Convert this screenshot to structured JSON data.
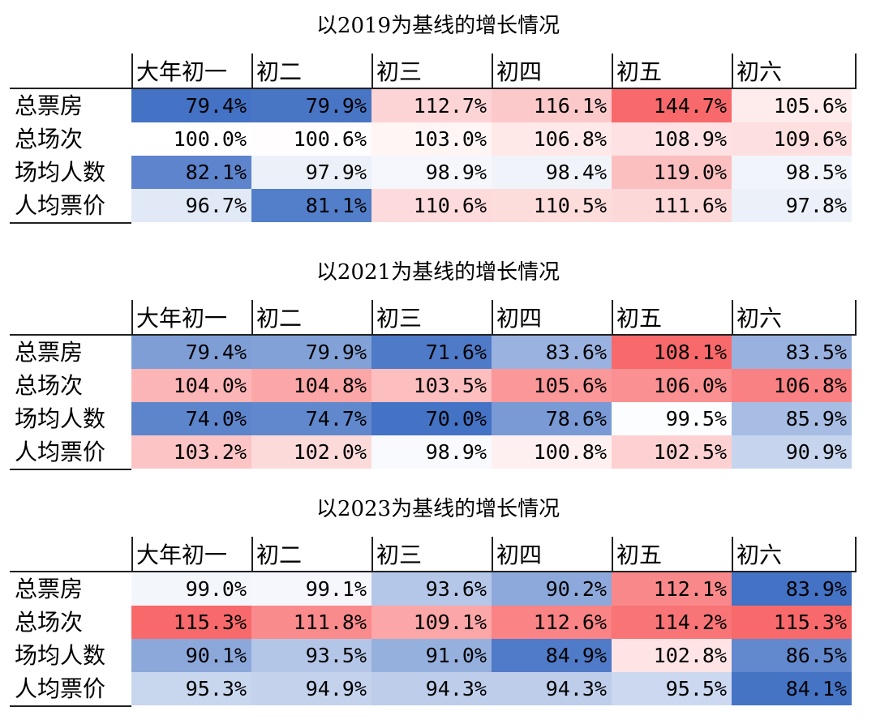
{
  "chart_data": [
    {
      "type": "heatmap",
      "title": "以2019为基线的增长情况",
      "columns": [
        "大年初一",
        "初二",
        "初三",
        "初四",
        "初五",
        "初六"
      ],
      "rows": [
        "总票房",
        "总场次",
        "场均人数",
        "人均票价"
      ],
      "display": [
        [
          "79.4%",
          "79.9%",
          "112.7%",
          "116.1%",
          "144.7%",
          "105.6%"
        ],
        [
          "100.0%",
          "100.6%",
          "103.0%",
          "106.8%",
          "108.9%",
          "109.6%"
        ],
        [
          "82.1%",
          "97.9%",
          "98.9%",
          "98.4%",
          "119.0%",
          "98.5%"
        ],
        [
          "96.7%",
          "81.1%",
          "110.6%",
          "110.5%",
          "111.6%",
          "97.8%"
        ]
      ],
      "values": [
        [
          79.4,
          79.9,
          112.7,
          116.1,
          144.7,
          105.6
        ],
        [
          100.0,
          100.6,
          103.0,
          106.8,
          108.9,
          109.6
        ],
        [
          82.1,
          97.9,
          98.9,
          98.4,
          119.0,
          98.5
        ],
        [
          96.7,
          81.1,
          110.6,
          110.5,
          111.6,
          97.8
        ]
      ]
    },
    {
      "type": "heatmap",
      "title": "以2021为基线的增长情况",
      "columns": [
        "大年初一",
        "初二",
        "初三",
        "初四",
        "初五",
        "初六"
      ],
      "rows": [
        "总票房",
        "总场次",
        "场均人数",
        "人均票价"
      ],
      "display": [
        [
          "79.4%",
          "79.9%",
          "71.6%",
          "83.6%",
          "108.1%",
          "83.5%"
        ],
        [
          "104.0%",
          "104.8%",
          "103.5%",
          "105.6%",
          "106.0%",
          "106.8%"
        ],
        [
          "74.0%",
          "74.7%",
          "70.0%",
          "78.6%",
          "99.5%",
          "85.9%"
        ],
        [
          "103.2%",
          "102.0%",
          "98.9%",
          "100.8%",
          "102.5%",
          "90.9%"
        ]
      ],
      "values": [
        [
          79.4,
          79.9,
          71.6,
          83.6,
          108.1,
          83.5
        ],
        [
          104.0,
          104.8,
          103.5,
          105.6,
          106.0,
          106.8
        ],
        [
          74.0,
          74.7,
          70.0,
          78.6,
          99.5,
          85.9
        ],
        [
          103.2,
          102.0,
          98.9,
          100.8,
          102.5,
          90.9
        ]
      ]
    },
    {
      "type": "heatmap",
      "title": "以2023为基线的增长情况",
      "columns": [
        "大年初一",
        "初二",
        "初三",
        "初四",
        "初五",
        "初六"
      ],
      "rows": [
        "总票房",
        "总场次",
        "场均人数",
        "人均票价"
      ],
      "display": [
        [
          "99.0%",
          "99.1%",
          "93.6%",
          "90.2%",
          "112.1%",
          "83.9%"
        ],
        [
          "115.3%",
          "111.8%",
          "109.1%",
          "112.6%",
          "114.2%",
          "115.3%"
        ],
        [
          "90.1%",
          "93.5%",
          "91.0%",
          "84.9%",
          "102.8%",
          "86.5%"
        ],
        [
          "95.3%",
          "94.9%",
          "94.3%",
          "94.3%",
          "95.5%",
          "84.1%"
        ]
      ],
      "values": [
        [
          99.0,
          99.1,
          93.6,
          90.2,
          112.1,
          83.9
        ],
        [
          115.3,
          111.8,
          109.1,
          112.6,
          114.2,
          115.3
        ],
        [
          90.1,
          93.5,
          91.0,
          84.9,
          102.8,
          86.5
        ],
        [
          95.3,
          94.9,
          94.3,
          94.3,
          95.5,
          84.1
        ]
      ]
    }
  ]
}
